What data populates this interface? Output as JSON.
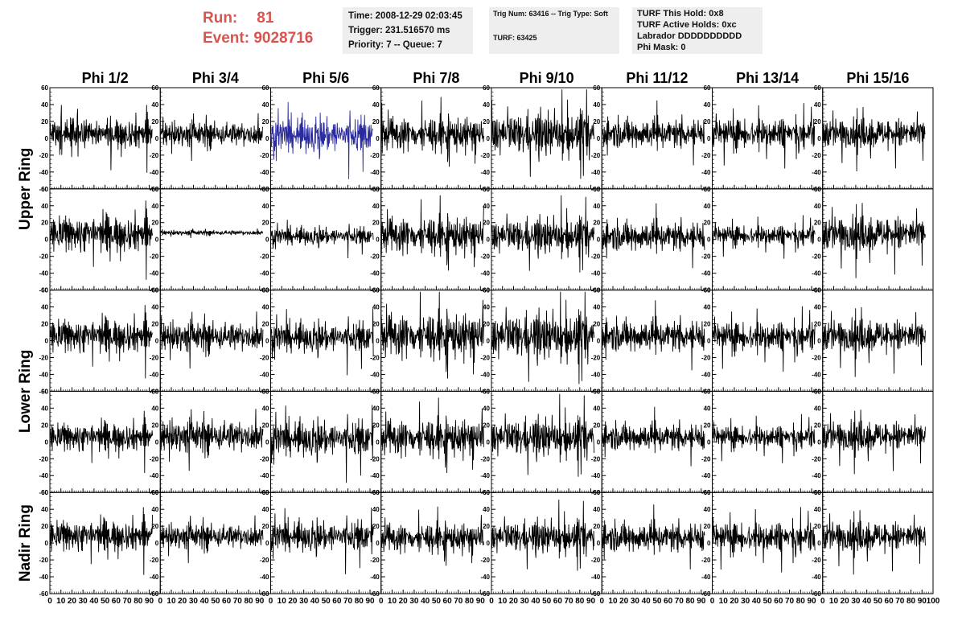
{
  "header": {
    "run_label": "Run:",
    "run_value": "81",
    "event_label": "Event:",
    "event_value": "9028716"
  },
  "time_panel": {
    "time": "Time: 2008-12-29 02:03:45",
    "trigger": "Trigger: 231.516570 ms",
    "priority": "Priority: 7 -- Queue: 7"
  },
  "trig_panel": {
    "trig_num": "Trig Num: 63416 -- Trig Type: Soft",
    "turf": "TURF: 63425"
  },
  "turf_panel": {
    "this_hold": "TURF This Hold: 0x8",
    "active_holds": "TURF Active Holds: 0xc",
    "labrador": "Labrador DDDDDDDDDD",
    "phi_mask": "Phi Mask: 0"
  },
  "colors": {
    "run_text": "#d9534f",
    "trace": "#000000",
    "highlight_trace": "#2b2ba0",
    "panel_bg": "#eeeeee"
  },
  "chart_data": {
    "type": "line",
    "columns": [
      "Phi 1/2",
      "Phi 3/4",
      "Phi 5/6",
      "Phi 7/8",
      "Phi 9/10",
      "Phi 11/12",
      "Phi 13/14",
      "Phi 15/16"
    ],
    "row_groups": [
      {
        "label": "Upper Ring",
        "rows": 2
      },
      {
        "label": "Lower Ring",
        "rows": 2
      },
      {
        "label": "Nadir Ring",
        "rows": 1
      }
    ],
    "xlim": [
      0,
      100
    ],
    "ylim": [
      -60,
      60
    ],
    "x_ticks": [
      0,
      10,
      20,
      30,
      40,
      50,
      60,
      70,
      80,
      90,
      100
    ],
    "y_ticks": [
      -60,
      -40,
      -20,
      0,
      20,
      40,
      60
    ],
    "samples_per_trace": 260,
    "trace_x_range": [
      0,
      93
    ],
    "highlighted": {
      "row": 0,
      "col": 2
    },
    "trace_amplitude": [
      [
        12,
        10,
        14,
        13,
        16,
        12,
        12,
        12
      ],
      [
        14,
        2,
        7,
        14,
        13,
        12,
        8,
        14
      ],
      [
        13,
        12,
        12,
        17,
        17,
        13,
        12,
        13
      ],
      [
        11,
        13,
        14,
        14,
        14,
        11,
        9,
        12
      ],
      [
        12,
        10,
        12,
        11,
        12,
        12,
        12,
        12
      ]
    ],
    "trace_offset": [
      [
        6,
        5,
        4,
        5,
        5,
        6,
        6,
        6
      ],
      [
        7,
        8,
        4,
        5,
        4,
        4,
        5,
        7
      ],
      [
        6,
        5,
        4,
        6,
        5,
        6,
        5,
        6
      ],
      [
        6,
        7,
        4,
        5,
        5,
        6,
        6,
        7
      ],
      [
        9,
        8,
        8,
        6,
        7,
        7,
        7,
        8
      ]
    ]
  }
}
